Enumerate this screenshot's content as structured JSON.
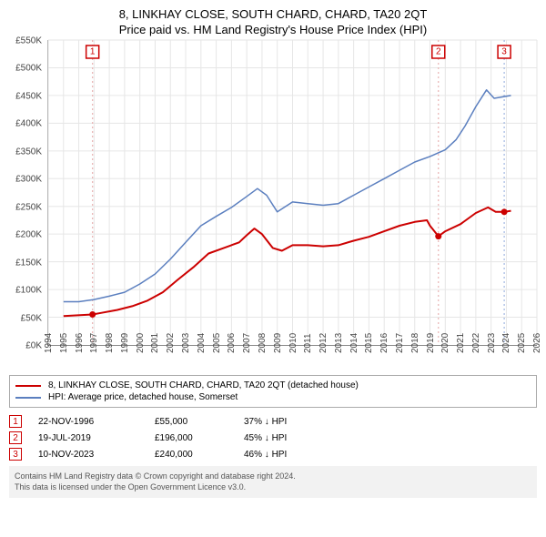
{
  "title": "8, LINKHAY CLOSE, SOUTH CHARD, CHARD, TA20 2QT",
  "subtitle": "Price paid vs. HM Land Registry's House Price Index (HPI)",
  "chart": {
    "type": "line",
    "x_min_year": 1994,
    "x_max_year": 2026,
    "x_tick_step": 1,
    "y_min": 0,
    "y_max": 550000,
    "y_tick_step": 50000,
    "y_tick_prefix": "£",
    "y_tick_suffix": "K",
    "background_color": "#ffffff",
    "grid_color": "#e6e6e6",
    "axis_color": "#888888",
    "tick_label_color": "#444444",
    "tick_label_fontsize": 10,
    "series": [
      {
        "name": "property",
        "color": "#cc0000",
        "width": 2,
        "label": "8, LINKHAY CLOSE, SOUTH CHARD, CHARD, TA20 2QT (detached house)",
        "points": [
          [
            1995.0,
            52000
          ],
          [
            1996.9,
            55000
          ],
          [
            1997.5,
            58000
          ],
          [
            1998.5,
            63000
          ],
          [
            1999.5,
            70000
          ],
          [
            2000.5,
            80000
          ],
          [
            2001.5,
            95000
          ],
          [
            2002.5,
            118000
          ],
          [
            2003.5,
            140000
          ],
          [
            2004.5,
            165000
          ],
          [
            2005.5,
            175000
          ],
          [
            2006.5,
            185000
          ],
          [
            2007.0,
            198000
          ],
          [
            2007.5,
            210000
          ],
          [
            2008.0,
            200000
          ],
          [
            2008.7,
            175000
          ],
          [
            2009.3,
            170000
          ],
          [
            2010.0,
            180000
          ],
          [
            2011.0,
            180000
          ],
          [
            2012.0,
            178000
          ],
          [
            2013.0,
            180000
          ],
          [
            2014.0,
            188000
          ],
          [
            2015.0,
            195000
          ],
          [
            2016.0,
            205000
          ],
          [
            2017.0,
            215000
          ],
          [
            2018.0,
            222000
          ],
          [
            2018.8,
            225000
          ],
          [
            2019.0,
            215000
          ],
          [
            2019.55,
            196000
          ],
          [
            2020.0,
            205000
          ],
          [
            2021.0,
            218000
          ],
          [
            2022.0,
            238000
          ],
          [
            2022.8,
            248000
          ],
          [
            2023.3,
            240000
          ],
          [
            2023.86,
            240000
          ],
          [
            2024.3,
            242000
          ]
        ]
      },
      {
        "name": "hpi",
        "color": "#5b7fbf",
        "width": 1.5,
        "label": "HPI: Average price, detached house, Somerset",
        "points": [
          [
            1995.0,
            78000
          ],
          [
            1996.0,
            78000
          ],
          [
            1997.0,
            82000
          ],
          [
            1998.0,
            88000
          ],
          [
            1999.0,
            95000
          ],
          [
            2000.0,
            110000
          ],
          [
            2001.0,
            128000
          ],
          [
            2002.0,
            155000
          ],
          [
            2003.0,
            185000
          ],
          [
            2004.0,
            215000
          ],
          [
            2005.0,
            232000
          ],
          [
            2006.0,
            248000
          ],
          [
            2007.0,
            268000
          ],
          [
            2007.7,
            282000
          ],
          [
            2008.3,
            270000
          ],
          [
            2009.0,
            240000
          ],
          [
            2010.0,
            258000
          ],
          [
            2011.0,
            255000
          ],
          [
            2012.0,
            252000
          ],
          [
            2013.0,
            255000
          ],
          [
            2014.0,
            270000
          ],
          [
            2015.0,
            285000
          ],
          [
            2016.0,
            300000
          ],
          [
            2017.0,
            315000
          ],
          [
            2018.0,
            330000
          ],
          [
            2019.0,
            340000
          ],
          [
            2020.0,
            352000
          ],
          [
            2020.7,
            370000
          ],
          [
            2021.3,
            395000
          ],
          [
            2022.0,
            430000
          ],
          [
            2022.7,
            460000
          ],
          [
            2023.2,
            445000
          ],
          [
            2023.86,
            448000
          ],
          [
            2024.3,
            450000
          ]
        ]
      }
    ],
    "markers": [
      {
        "n": "1",
        "year": 1996.9,
        "price": 55000,
        "line_color": "#e9b3b3"
      },
      {
        "n": "2",
        "year": 2019.55,
        "price": 196000,
        "line_color": "#e9b3b3"
      },
      {
        "n": "3",
        "year": 2023.86,
        "price": 240000,
        "line_color": "#9fb6e0"
      }
    ]
  },
  "legend": {
    "items": [
      {
        "color": "#cc0000",
        "label": "8, LINKHAY CLOSE, SOUTH CHARD, CHARD, TA20 2QT (detached house)"
      },
      {
        "color": "#5b7fbf",
        "label": "HPI: Average price, detached house, Somerset"
      }
    ]
  },
  "sales": [
    {
      "n": "1",
      "date": "22-NOV-1996",
      "price": "£55,000",
      "hpi_delta": "37% ↓ HPI"
    },
    {
      "n": "2",
      "date": "19-JUL-2019",
      "price": "£196,000",
      "hpi_delta": "45% ↓ HPI"
    },
    {
      "n": "3",
      "date": "10-NOV-2023",
      "price": "£240,000",
      "hpi_delta": "46% ↓ HPI"
    }
  ],
  "footer": {
    "line1": "Contains HM Land Registry data © Crown copyright and database right 2024.",
    "line2": "This data is licensed under the Open Government Licence v3.0."
  }
}
